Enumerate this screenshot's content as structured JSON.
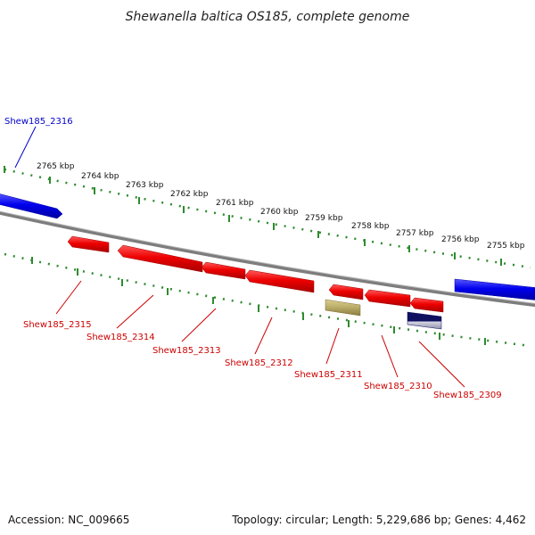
{
  "title": "Shewanella baltica OS185, complete genome",
  "footer": {
    "accession": "Accession: NC_009665",
    "summary": "Topology: circular; Length: 5,229,686 bp; Genes: 4,462"
  },
  "colors": {
    "backbone": "#808080",
    "ticks": "#2e8b2e",
    "forward_gene": "#0000ee",
    "reverse_gene": "#ee0000",
    "label_forward": "#0000cc",
    "label_reverse": "#cc0000",
    "olive_feature": "#b8aa66",
    "navy_feature": "#101060"
  },
  "kbp_labels": [
    "2765 kbp",
    "2764 kbp",
    "2763 kbp",
    "2762 kbp",
    "2761 kbp",
    "2760 kbp",
    "2759 kbp",
    "2758 kbp",
    "2757 kbp",
    "2756 kbp",
    "2755 kbp"
  ],
  "genes": {
    "forward": [
      {
        "id": "gene-fwd-a",
        "label": "Shew185_2316"
      },
      {
        "id": "gene-fwd-b",
        "label": ""
      }
    ],
    "reverse": [
      {
        "label": "Shew185_2315"
      },
      {
        "label": "Shew185_2314"
      },
      {
        "label": "Shew185_2313"
      },
      {
        "label": "Shew185_2312"
      },
      {
        "label": "Shew185_2311"
      },
      {
        "label": "Shew185_2310"
      },
      {
        "label": "Shew185_2309"
      }
    ]
  }
}
